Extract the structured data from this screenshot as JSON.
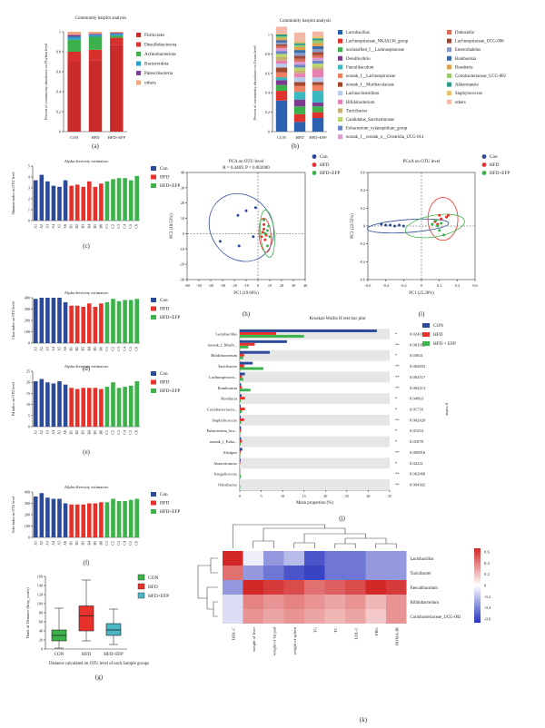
{
  "colors": {
    "con": "#2b4a9a",
    "hfd": "#e8312a",
    "efp": "#3cb34a",
    "teal": "#4bb5c4"
  },
  "panel_labels": [
    "(a)",
    "(b)",
    "(c)",
    "(d)",
    "(e)",
    "(f)",
    "(g)",
    "(h)",
    "(i)",
    "(j)",
    "(k)"
  ],
  "chart_data": [
    {
      "id": "a",
      "type": "bar",
      "stacked": true,
      "title": "Community barplot analysis",
      "ylabel": "Percent of community abundance on Phylum level",
      "categories": [
        "CON",
        "HFD",
        "HFD+EFP"
      ],
      "ylim": [
        0,
        1
      ],
      "yticks": [
        "0",
        "0.2",
        "0.4",
        "0.6",
        "0.8",
        "1"
      ],
      "series": [
        {
          "name": "Firmicutes",
          "color": "#c92a2a",
          "values": [
            0.7,
            0.71,
            0.87
          ]
        },
        {
          "name": "Desulfobacterota",
          "color": "#d8312d",
          "values": [
            0.1,
            0.11,
            0.07
          ]
        },
        {
          "name": "Actinobacteriota",
          "color": "#3cb04a",
          "values": [
            0.12,
            0.13,
            0.02
          ]
        },
        {
          "name": "Bacteroidota",
          "color": "#2aa0c8",
          "values": [
            0.03,
            0.02,
            0.02
          ]
        },
        {
          "name": "Patescibacteria",
          "color": "#7b3f94",
          "values": [
            0.02,
            0.01,
            0.01
          ]
        },
        {
          "name": "others",
          "color": "#f4a582",
          "values": [
            0.03,
            0.02,
            0.01
          ]
        }
      ]
    },
    {
      "id": "b",
      "type": "bar",
      "stacked": true,
      "title": "Community barplot analysis",
      "ylabel": "Percent of community abundance on Genus level",
      "categories": [
        "CON",
        "HFD",
        "HFD+EFP"
      ],
      "ylim": [
        0,
        1
      ],
      "yticks": [
        "0",
        "0.2",
        "0.4",
        "0.6",
        "0.8",
        "1"
      ],
      "series": [
        {
          "name": "Lactobacillus",
          "color": "#2b5fb0",
          "values": [
            0.32,
            0.1,
            0.14
          ]
        },
        {
          "name": "Lachnospiraceae_NK4A136_group",
          "color": "#e0312a",
          "values": [
            0.1,
            0.08,
            0.06
          ]
        },
        {
          "name": "unclassified_f__Lachnospiraceae",
          "color": "#3cb04a",
          "values": [
            0.06,
            0.08,
            0.06
          ]
        },
        {
          "name": "Desulfovibrio",
          "color": "#7a3b91",
          "values": [
            0.05,
            0.07,
            0.04
          ]
        },
        {
          "name": "Faecalibaculum",
          "color": "#3ab8c0",
          "values": [
            0.03,
            0.08,
            0.12
          ]
        },
        {
          "name": "norank_f__Lachnospiraceae",
          "color": "#f08060",
          "values": [
            0.05,
            0.06,
            0.06
          ]
        },
        {
          "name": "norank_f__Muribaculaceae",
          "color": "#a2472c",
          "values": [
            0.05,
            0.04,
            0.03
          ]
        },
        {
          "name": "Lachnoclostridium",
          "color": "#b7c9e8",
          "values": [
            0.04,
            0.05,
            0.05
          ]
        },
        {
          "name": "Bifidobacterium",
          "color": "#e87fb0",
          "values": [
            0.03,
            0.04,
            0.08
          ]
        },
        {
          "name": "Turicibacter",
          "color": "#c8b070",
          "values": [
            0.04,
            0.03,
            0.03
          ]
        },
        {
          "name": "Candidatus_Saccharimonas",
          "color": "#b8d86a",
          "values": [
            0.03,
            0.03,
            0.03
          ]
        },
        {
          "name": "Eubacterium_xylanophilum_group",
          "color": "#6a84c8",
          "values": [
            0.03,
            0.03,
            0.03
          ]
        },
        {
          "name": "norank_f__norank_o__Clostridia_UCG-014",
          "color": "#d99bd0",
          "values": [
            0.03,
            0.03,
            0.03
          ]
        },
        {
          "name": "Dubosiella",
          "color": "#e06a58",
          "values": [
            0.02,
            0.03,
            0.03
          ]
        },
        {
          "name": "Lachnospiraceae_UCG-006",
          "color": "#9c4a38",
          "values": [
            0.02,
            0.03,
            0.03
          ]
        },
        {
          "name": "Enterorhabdus",
          "color": "#8a9ac8",
          "values": [
            0.02,
            0.03,
            0.03
          ]
        },
        {
          "name": "Romboutsia",
          "color": "#3a6aa8",
          "values": [
            0.02,
            0.03,
            0.03
          ]
        },
        {
          "name": "Roseburia",
          "color": "#e3a04a",
          "values": [
            0.02,
            0.03,
            0.03
          ]
        },
        {
          "name": "Coriobacteriaceae_UCG-002",
          "color": "#98c86a",
          "values": [
            0.02,
            0.02,
            0.03
          ]
        },
        {
          "name": "Akkermansia",
          "color": "#2f9a8a",
          "values": [
            0.02,
            0.02,
            0.02
          ]
        },
        {
          "name": "Staphylococcus",
          "color": "#e8c06a",
          "values": [
            0.01,
            0.02,
            0.02
          ]
        },
        {
          "name": "others",
          "color": "#f4b8a8",
          "values": [
            0.07,
            0.09,
            0.05
          ]
        }
      ]
    },
    {
      "id": "c",
      "type": "bar",
      "title": "Alpha diversity estimators",
      "ylabel": "Shannon index on OTU level",
      "categories": [
        "A1",
        "A2",
        "A3",
        "A4",
        "A5",
        "A6",
        "B1",
        "B2",
        "B3",
        "B4",
        "B5",
        "B6",
        "C1",
        "C2",
        "C3",
        "C4",
        "C5",
        "C6"
      ],
      "values": [
        3.7,
        4.2,
        3.6,
        3.2,
        3.1,
        3.7,
        3.2,
        3.3,
        3.1,
        3.6,
        3.1,
        3.4,
        3.6,
        3.8,
        3.9,
        3.9,
        3.7,
        4.1
      ],
      "ylim": [
        0,
        5
      ],
      "yticks": [
        "0",
        "1",
        "2",
        "3",
        "4",
        "5"
      ],
      "legend": [
        "Con",
        "HFD",
        "HFD+EFP"
      ]
    },
    {
      "id": "d",
      "type": "bar",
      "title": "Alpha diversity estimators",
      "ylabel": "Chao index on OTU level",
      "categories": [
        "A1",
        "A2",
        "A3",
        "A4",
        "A5",
        "A6",
        "B1",
        "B2",
        "B3",
        "B4",
        "B5",
        "B6",
        "C1",
        "C2",
        "C3",
        "C4",
        "C5",
        "C6"
      ],
      "values": [
        390,
        430,
        410,
        400,
        410,
        360,
        330,
        330,
        320,
        350,
        320,
        350,
        360,
        390,
        370,
        380,
        380,
        390
      ],
      "ylim": [
        0,
        400
      ],
      "yticks": [
        "0",
        "100",
        "200",
        "300",
        "400"
      ],
      "legend": [
        "Con",
        "HFD",
        "HFD+EFP"
      ]
    },
    {
      "id": "e",
      "type": "bar",
      "title": "Alpha diversity estimators",
      "ylabel": "Pd index on OTU level",
      "categories": [
        "A1",
        "A2",
        "A3",
        "A4",
        "A5",
        "A6",
        "B1",
        "B2",
        "B3",
        "B4",
        "B5",
        "B6",
        "C1",
        "C2",
        "C3",
        "C4",
        "C5",
        "C6"
      ],
      "values": [
        20.5,
        21.5,
        20.0,
        19.5,
        20.5,
        19.0,
        17.5,
        17.0,
        17.5,
        17.5,
        17.5,
        17.0,
        18.0,
        20.0,
        17.5,
        18.0,
        18.5,
        20.5
      ],
      "ylim": [
        0,
        25
      ],
      "yticks": [
        "0",
        "5",
        "10",
        "15",
        "20",
        "25"
      ],
      "legend": [
        "Con",
        "HFD",
        "HFD+EFP"
      ]
    },
    {
      "id": "f",
      "type": "bar",
      "title": "Alpha diversity estimators",
      "ylabel": "Sobs index on OTU level",
      "categories": [
        "A1",
        "A2",
        "A3",
        "A4",
        "A5",
        "A6",
        "B1",
        "B2",
        "B3",
        "B4",
        "B5",
        "B6",
        "C1",
        "C2",
        "C3",
        "C4",
        "C5",
        "C6"
      ],
      "values": [
        360,
        390,
        350,
        340,
        340,
        300,
        290,
        290,
        290,
        300,
        300,
        310,
        310,
        340,
        320,
        320,
        330,
        340
      ],
      "ylim": [
        0,
        400
      ],
      "yticks": [
        "0",
        "100",
        "200",
        "300",
        "400"
      ],
      "legend": [
        "Con",
        "HFD",
        "HFD+EFP"
      ]
    },
    {
      "id": "g",
      "type": "box",
      "ylabel": "Rank of Distance (bray_curtis)",
      "xlabel": "Distance calculated on OTU level of each Sample groups",
      "categories": [
        "CON",
        "HFD",
        "HFD+EFP"
      ],
      "boxes": [
        {
          "name": "CON",
          "color": "#3cb34a",
          "min": 2,
          "q1": 18,
          "median": 30,
          "q3": 42,
          "max": 90
        },
        {
          "name": "HFD",
          "color": "#e8312a",
          "min": 18,
          "q1": 40,
          "median": 73,
          "q3": 95,
          "max": 152
        },
        {
          "name": "HFD+EFP",
          "color": "#4bb5c4",
          "min": 10,
          "q1": 30,
          "median": 42,
          "q3": 56,
          "max": 88
        }
      ],
      "ylim": [
        0,
        160
      ],
      "yticks": [
        "0",
        "20",
        "40",
        "60",
        "80",
        "100",
        "120",
        "140",
        "160"
      ],
      "legend": [
        "CON",
        "HFD",
        "HFD+EFP"
      ]
    },
    {
      "id": "h",
      "type": "scatter",
      "title": "PCA on OTU level",
      "subtitle": "R = 0.4469, P = 0.002000",
      "xlabel": "PC1 (19.66%)",
      "ylabel": "PC2 (10.53%)",
      "xlim": [
        -60,
        40
      ],
      "ylim": [
        -30,
        40
      ],
      "xticks": [
        "-60",
        "-50",
        "-40",
        "-30",
        "-20",
        "-10",
        "0",
        "10",
        "20",
        "30",
        "40"
      ],
      "yticks": [
        "-30",
        "-20",
        "-10",
        "0",
        "10",
        "20",
        "30",
        "40"
      ],
      "legend": [
        "Con",
        "HFD",
        "HFD+EFP"
      ],
      "series": [
        {
          "name": "Con",
          "points": [
            [
              -32,
              -5
            ],
            [
              -17,
              12
            ],
            [
              -16,
              -8
            ],
            [
              -10,
              15
            ],
            [
              -4,
              -2
            ],
            [
              -2,
              17
            ]
          ]
        },
        {
          "name": "HFD",
          "points": [
            [
              3,
              -2
            ],
            [
              5,
              3
            ],
            [
              6,
              -4
            ],
            [
              4,
              1
            ],
            [
              7,
              -1
            ],
            [
              5,
              6
            ]
          ]
        },
        {
          "name": "HFD+EFP",
          "points": [
            [
              6,
              0
            ],
            [
              8,
              2
            ],
            [
              10,
              -2
            ],
            [
              5,
              9
            ],
            [
              8,
              -8
            ],
            [
              9,
              5
            ]
          ]
        }
      ]
    },
    {
      "id": "i",
      "type": "scatter",
      "title": "PCoA on OTU level",
      "xlabel": "PC1 (25.28%)",
      "ylabel": "PC2 (22.55%)",
      "xlim": [
        -0.6,
        0.6
      ],
      "ylim": [
        -0.6,
        0.6
      ],
      "xticks": [
        "-0.6",
        "-0.4",
        "-0.2",
        "0",
        "0.2",
        "0.4",
        "0.6"
      ],
      "yticks": [
        "-0.6",
        "-0.4",
        "-0.2",
        "0",
        "0.2",
        "0.4",
        "0.6"
      ],
      "legend": [
        "Con",
        "HFD",
        "HFD+EFP"
      ],
      "series": [
        {
          "name": "Con",
          "points": [
            [
              -0.45,
              0.02
            ],
            [
              -0.4,
              0.01
            ],
            [
              -0.35,
              0.01
            ],
            [
              -0.3,
              0.0
            ],
            [
              -0.25,
              0.01
            ],
            [
              -0.2,
              0.0
            ]
          ]
        },
        {
          "name": "HFD",
          "points": [
            [
              0.15,
              0.05
            ],
            [
              0.2,
              0.12
            ],
            [
              0.22,
              0.08
            ],
            [
              0.28,
              0.1
            ],
            [
              0.3,
              0.12
            ],
            [
              0.18,
              0.02
            ]
          ]
        },
        {
          "name": "HFD+EFP",
          "points": [
            [
              0.12,
              0.02
            ],
            [
              0.18,
              0.0
            ],
            [
              0.2,
              -0.05
            ],
            [
              0.25,
              -0.1
            ],
            [
              0.16,
              0.06
            ],
            [
              0.22,
              0.03
            ]
          ]
        }
      ]
    },
    {
      "id": "j",
      "type": "bar",
      "orientation": "horizontal",
      "title": "Kruskal-Wallis H test bar plot",
      "xlabel": "Mean proportion (%)",
      "xlim": [
        0,
        35
      ],
      "xticks": [
        "0",
        "5",
        "10",
        "15",
        "20",
        "25",
        "30",
        "35"
      ],
      "legend": [
        "CON",
        "HFD",
        "HFD + EFP"
      ],
      "categories": [
        "Lactobacillus",
        "norank_f_Murib...",
        "Bifidobacterium",
        "Turicibacter",
        "Lachnospiraceа...",
        "Romboutsia",
        "Roseburia",
        "Coriobacteriacea...",
        "Staphylococcus",
        "Eubacterium_bra...",
        "norank_f_Euba...",
        "Alistipes",
        "Anaerotruncus",
        "Jeotgalicoccus",
        "Odoribacter"
      ],
      "series": [
        {
          "name": "CON",
          "values": [
            32.0,
            11.0,
            7.0,
            3.0,
            1.2,
            0.3,
            0.4,
            0.2,
            0.2,
            0.3,
            0.3,
            0.6,
            0.2,
            0.0,
            0.0
          ]
        },
        {
          "name": "HFD",
          "values": [
            8.5,
            3.5,
            1.0,
            1.0,
            0.5,
            0.5,
            1.2,
            1.2,
            1.0,
            0.3,
            0.5,
            0.2,
            0.1,
            0.0,
            0.0
          ]
        },
        {
          "name": "HFD + EFP",
          "values": [
            15.0,
            2.0,
            0.8,
            5.5,
            0.8,
            2.5,
            0.2,
            0.5,
            0.3,
            0.1,
            0.2,
            0.1,
            0.0,
            0.3,
            0.1
          ]
        }
      ],
      "stars": [
        "*",
        "**",
        "*",
        "**",
        "**",
        "**",
        "*",
        "*",
        "**",
        "*",
        "*",
        "**",
        "*",
        "**",
        "**"
      ],
      "pvalues": [
        "0.02411",
        "0.003562",
        "0.03631",
        "0.002833",
        "0.002117",
        "0.002213",
        "0.04963",
        "0.01716",
        "0.002429",
        "0.01254",
        "0.01878",
        "0.005816",
        "0.02221",
        "0.002968",
        "0.004302"
      ],
      "pvalue_label": "p-value"
    },
    {
      "id": "k",
      "type": "heatmap",
      "rows": [
        "Lactobacillus",
        "Turicibacter",
        "Faecalibaculum",
        "Bifidobacterium",
        "Coriobacteriaceae_UCG-002"
      ],
      "cols": [
        "HDL-C",
        "weight of liver",
        "weight of fat pad",
        "weight of spleen",
        "TG",
        "TC",
        "LDL-C",
        "FBG",
        "HOMA-IR"
      ],
      "values": [
        [
          0.6,
          -0.05,
          -0.3,
          -0.2,
          -0.5,
          -0.4,
          -0.4,
          -0.3,
          -0.3
        ],
        [
          0.4,
          -0.3,
          -0.4,
          -0.5,
          -0.55,
          -0.4,
          -0.4,
          -0.3,
          -0.3
        ],
        [
          -0.3,
          0.6,
          0.55,
          0.5,
          0.4,
          0.45,
          0.5,
          0.6,
          0.55
        ],
        [
          -0.1,
          0.35,
          0.3,
          0.35,
          0.3,
          0.25,
          0.3,
          0.2,
          0.3
        ],
        [
          -0.1,
          0.3,
          0.25,
          0.3,
          0.25,
          0.2,
          0.25,
          0.15,
          0.3
        ]
      ],
      "scale": {
        "min": -0.6,
        "max": 0.6,
        "ticks": [
          "0.6",
          "0.4",
          "0.2",
          "0",
          "-0.2",
          "-0.4",
          "-0.6"
        ]
      }
    }
  ]
}
